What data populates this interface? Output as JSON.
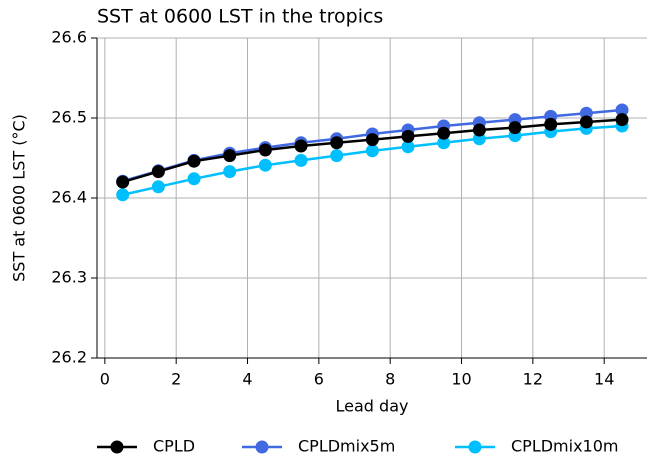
{
  "chart_data": {
    "type": "line",
    "title": "SST at 0600 LST in the tropics",
    "xlabel": "Lead day",
    "ylabel": "SST at 0600 LST (°C)",
    "x": [
      0.5,
      1.5,
      2.5,
      3.5,
      4.5,
      5.5,
      6.5,
      7.5,
      8.5,
      9.5,
      10.5,
      11.5,
      12.5,
      13.5,
      14.5
    ],
    "series": [
      {
        "name": "CPLD",
        "color": "#000000",
        "values": [
          26.42,
          26.433,
          26.446,
          26.453,
          26.46,
          26.465,
          26.469,
          26.473,
          26.477,
          26.481,
          26.485,
          26.488,
          26.492,
          26.495,
          26.498
        ]
      },
      {
        "name": "CPLDmix5m",
        "color": "#4169e1",
        "values": [
          26.421,
          26.434,
          26.447,
          26.456,
          26.463,
          26.469,
          26.474,
          26.48,
          26.485,
          26.49,
          26.494,
          26.498,
          26.502,
          26.506,
          26.51
        ]
      },
      {
        "name": "CPLDmix10m",
        "color": "#00bfff",
        "values": [
          26.404,
          26.414,
          26.424,
          26.433,
          26.441,
          26.447,
          26.453,
          26.459,
          26.464,
          26.469,
          26.474,
          26.478,
          26.483,
          26.487,
          26.49
        ]
      }
    ],
    "xlim": [
      -0.22,
      15.2
    ],
    "ylim": [
      26.2,
      26.6
    ],
    "xticks": [
      0,
      2,
      4,
      6,
      8,
      10,
      12,
      14
    ],
    "yticks": [
      26.2,
      26.3,
      26.4,
      26.5,
      26.6
    ],
    "grid": true,
    "legend": "bottom"
  }
}
